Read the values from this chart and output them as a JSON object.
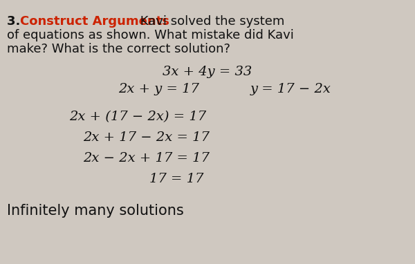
{
  "background_color": "#cfc8c0",
  "number": "3.",
  "label_colored": "Construct Arguments",
  "label_color": "#cc2200",
  "label_rest": " Kavi solved the system",
  "line2": "of equations as shown. What mistake did Kavi",
  "line3": "make? What is the correct solution?",
  "eq1": "3x + 4y = 33",
  "eq2": "2x + y = 17",
  "eq2b": "y = 17 − 2x",
  "step1": "2x + (17 − 2x) = 17",
  "step2": "2x + 17 − 2x = 17",
  "step3": "2x − 2x + 17 = 17",
  "step4": "17 = 17",
  "conclusion": "Infinitely many solutions",
  "text_color": "#111111",
  "font_size_header": 13.0,
  "font_size_math": 14.0,
  "font_size_conclusion": 15.0
}
